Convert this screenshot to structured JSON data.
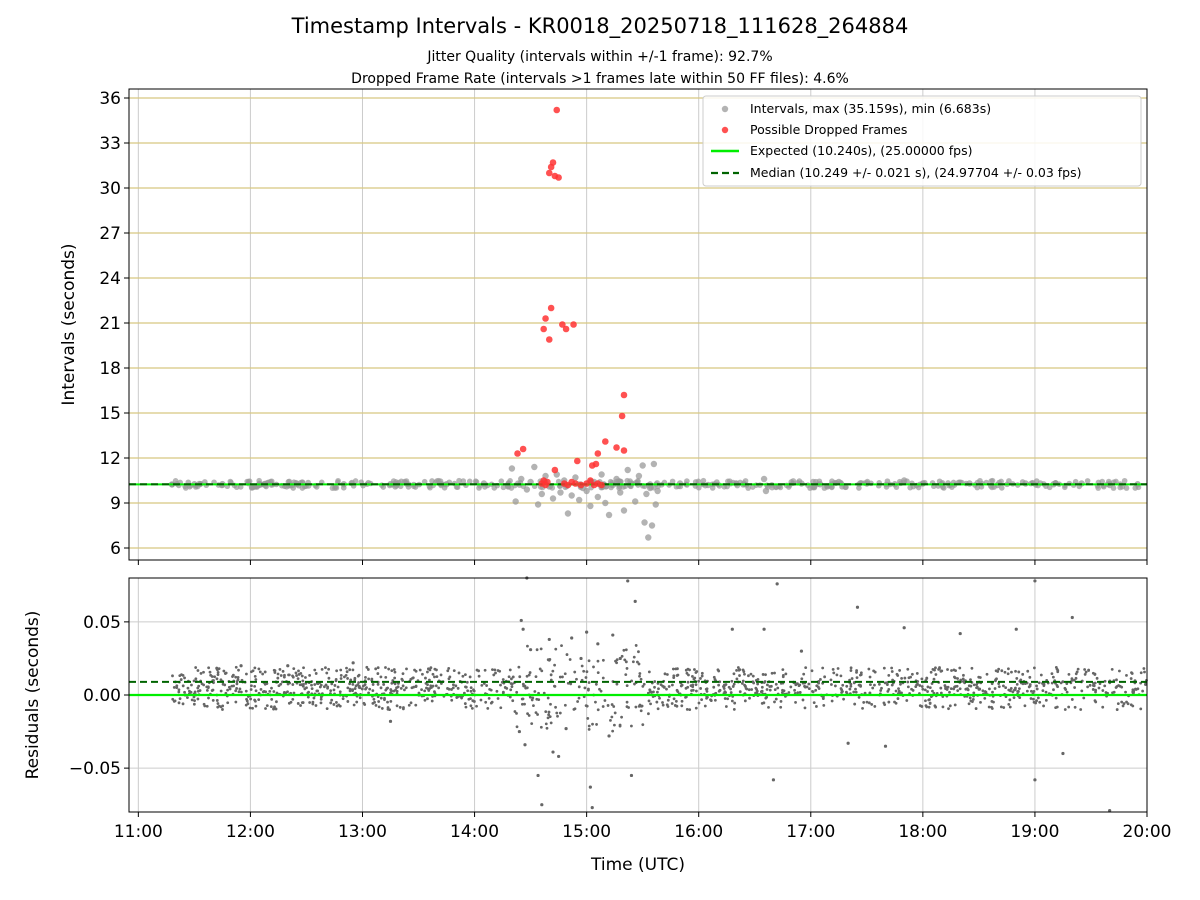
{
  "figure": {
    "title": "Timestamp Intervals - KR0018_20250718_111628_264884",
    "subtitle_1": "Jitter Quality (intervals within +/-1 frame): 92.7%",
    "subtitle_2": "Dropped Frame Rate (intervals >1 frames late within 50 FF files): 4.6%"
  },
  "colors": {
    "intervals": "#999999",
    "dropped": "#ff3333",
    "expected": "#00ee00",
    "median": "#006400",
    "residuals": "#666666",
    "hgrid_top": "#d8c880",
    "grid": "#cccccc"
  },
  "chart_data": [
    {
      "type": "scatter",
      "title": "",
      "xlabel": "",
      "ylabel": "Intervals (seconds)",
      "xlim": [
        "10:55",
        "20:00"
      ],
      "ylim": [
        5.2,
        36.6
      ],
      "yticks": [
        6,
        9,
        12,
        15,
        18,
        21,
        24,
        27,
        30,
        33,
        36
      ],
      "ytick_labels": [
        "6",
        "9",
        "12",
        "15",
        "18",
        "21",
        "24",
        "27",
        "30",
        "33",
        "36"
      ],
      "xticks": [
        "11:00",
        "12:00",
        "13:00",
        "14:00",
        "15:00",
        "16:00",
        "17:00",
        "18:00",
        "19:00",
        "20:00"
      ],
      "grid": "on",
      "legend_position": "top-right",
      "legend": [
        "Intervals, max (35.159s), min (6.683s)",
        "Possible Dropped Frames",
        "Expected (10.240s), (25.00000 fps)",
        "Median (10.249 +/- 0.021 s), (24.97704 +/- 0.03 fps)"
      ],
      "series": [
        {
          "name": "Intervals, max (35.159s), min (6.683s)",
          "kind": "scatter",
          "points": [
            [
              "11:18",
              10.24
            ],
            [
              "11:30",
              10.25
            ],
            [
              "11:45",
              10.26
            ],
            [
              "12:05",
              10.25
            ],
            [
              "12:25",
              10.26
            ],
            [
              "12:50",
              10.25
            ],
            [
              "13:15",
              10.26
            ],
            [
              "13:45",
              10.25
            ],
            [
              "14:05",
              10.3
            ],
            [
              "14:18",
              10.1
            ],
            [
              "14:20",
              11.3
            ],
            [
              "14:22",
              9.1
            ],
            [
              "14:25",
              10.6
            ],
            [
              "14:28",
              9.9
            ],
            [
              "14:30",
              10.4
            ],
            [
              "14:32",
              11.4
            ],
            [
              "14:34",
              8.9
            ],
            [
              "14:36",
              9.6
            ],
            [
              "14:38",
              10.8
            ],
            [
              "14:40",
              10.1
            ],
            [
              "14:42",
              9.3
            ],
            [
              "14:44",
              10.9
            ],
            [
              "14:46",
              9.7
            ],
            [
              "14:48",
              10.5
            ],
            [
              "14:50",
              8.3
            ],
            [
              "14:52",
              9.5
            ],
            [
              "14:54",
              10.7
            ],
            [
              "14:56",
              9.2
            ],
            [
              "14:58",
              10.0
            ],
            [
              "15:00",
              9.8
            ],
            [
              "15:02",
              8.8
            ],
            [
              "15:04",
              10.4
            ],
            [
              "15:06",
              9.4
            ],
            [
              "15:08",
              10.9
            ],
            [
              "15:10",
              9.0
            ],
            [
              "15:12",
              8.2
            ],
            [
              "15:14",
              10.2
            ],
            [
              "15:16",
              10.6
            ],
            [
              "15:18",
              9.7
            ],
            [
              "15:20",
              8.5
            ],
            [
              "15:22",
              11.2
            ],
            [
              "15:24",
              10.3
            ],
            [
              "15:26",
              9.1
            ],
            [
              "15:28",
              10.8
            ],
            [
              "15:30",
              11.5
            ],
            [
              "15:31",
              7.7
            ],
            [
              "15:32",
              9.6
            ],
            [
              "15:33",
              6.7
            ],
            [
              "15:34",
              10.0
            ],
            [
              "15:35",
              7.5
            ],
            [
              "15:36",
              11.6
            ],
            [
              "15:37",
              8.9
            ],
            [
              "15:38",
              9.8
            ],
            [
              "15:50",
              10.3
            ],
            [
              "16:05",
              10.2
            ],
            [
              "16:20",
              10.3
            ],
            [
              "16:35",
              10.6
            ],
            [
              "16:36",
              9.8
            ],
            [
              "16:55",
              10.3
            ],
            [
              "17:05",
              10.25
            ],
            [
              "17:15",
              10.4
            ],
            [
              "17:30",
              10.3
            ],
            [
              "17:45",
              10.25
            ],
            [
              "17:50",
              10.5
            ],
            [
              "18:00",
              10.3
            ],
            [
              "18:10",
              10.25
            ],
            [
              "18:25",
              10.3
            ],
            [
              "18:40",
              10.2
            ],
            [
              "18:55",
              10.3
            ],
            [
              "19:10",
              10.25
            ],
            [
              "19:25",
              10.3
            ],
            [
              "19:40",
              10.2
            ],
            [
              "19:55",
              10.25
            ]
          ]
        },
        {
          "name": "Possible Dropped Frames",
          "kind": "scatter",
          "points": [
            [
              "14:44",
              35.2
            ],
            [
              "14:41",
              31.4
            ],
            [
              "14:42",
              31.7
            ],
            [
              "14:40",
              31.0
            ],
            [
              "14:43",
              30.8
            ],
            [
              "14:45",
              30.7
            ],
            [
              "14:37",
              20.6
            ],
            [
              "14:38",
              21.3
            ],
            [
              "14:41",
              22.0
            ],
            [
              "14:40",
              19.9
            ],
            [
              "14:47",
              20.9
            ],
            [
              "14:49",
              20.6
            ],
            [
              "14:53",
              20.9
            ],
            [
              "15:20",
              16.2
            ],
            [
              "15:19",
              14.8
            ],
            [
              "15:16",
              12.7
            ],
            [
              "15:20",
              12.5
            ],
            [
              "15:10",
              13.1
            ],
            [
              "15:06",
              12.3
            ],
            [
              "14:23",
              12.3
            ],
            [
              "14:26",
              12.6
            ],
            [
              "14:55",
              11.8
            ],
            [
              "15:03",
              11.5
            ],
            [
              "15:05",
              11.6
            ],
            [
              "14:43",
              11.2
            ],
            [
              "14:36",
              10.3
            ],
            [
              "14:37",
              10.5
            ],
            [
              "14:38",
              10.2
            ],
            [
              "14:39",
              10.4
            ],
            [
              "14:48",
              10.3
            ],
            [
              "14:50",
              10.2
            ],
            [
              "14:52",
              10.4
            ],
            [
              "14:54",
              10.3
            ],
            [
              "14:57",
              10.2
            ],
            [
              "15:00",
              10.3
            ],
            [
              "15:02",
              10.5
            ],
            [
              "15:04",
              10.2
            ],
            [
              "15:06",
              10.3
            ],
            [
              "15:08",
              10.2
            ]
          ]
        },
        {
          "name": "Expected (10.240s), (25.00000 fps)",
          "kind": "hline",
          "y": 10.24
        },
        {
          "name": "Median (10.249 +/- 0.021 s), (24.97704 +/- 0.03 fps)",
          "kind": "hline",
          "y": 10.249
        }
      ]
    },
    {
      "type": "scatter",
      "title": "",
      "xlabel": "Time (UTC)",
      "ylabel": "Residuals (seconds)",
      "xlim": [
        "10:55",
        "20:00"
      ],
      "ylim": [
        -0.08,
        0.08
      ],
      "yticks": [
        -0.05,
        0.0,
        0.05
      ],
      "ytick_labels": [
        "−0.05",
        "0.00",
        "0.05"
      ],
      "xticks": [
        "11:00",
        "12:00",
        "13:00",
        "14:00",
        "15:00",
        "16:00",
        "17:00",
        "18:00",
        "19:00",
        "20:00"
      ],
      "grid": "on",
      "series": [
        {
          "kind": "scatter",
          "points": [
            [
              "14:25",
              0.051
            ],
            [
              "14:26",
              0.045
            ],
            [
              "14:24",
              -0.025
            ],
            [
              "14:27",
              -0.034
            ],
            [
              "14:30",
              0.031
            ],
            [
              "14:34",
              -0.055
            ],
            [
              "14:36",
              -0.075
            ],
            [
              "14:40",
              0.038
            ],
            [
              "14:42",
              -0.039
            ],
            [
              "14:45",
              -0.042
            ],
            [
              "14:49",
              -0.023
            ],
            [
              "14:52",
              0.039
            ],
            [
              "14:57",
              0.025
            ],
            [
              "15:00",
              0.043
            ],
            [
              "15:02",
              -0.063
            ],
            [
              "15:03",
              -0.077
            ],
            [
              "15:06",
              0.035
            ],
            [
              "15:12",
              -0.028
            ],
            [
              "15:14",
              0.041
            ],
            [
              "15:18",
              0.025
            ],
            [
              "15:22",
              0.078
            ],
            [
              "15:24",
              -0.055
            ],
            [
              "15:26",
              0.064
            ],
            [
              "14:28",
              0.08
            ],
            [
              "16:18",
              0.045
            ],
            [
              "16:35",
              0.045
            ],
            [
              "16:40",
              -0.058
            ],
            [
              "16:42",
              0.076
            ],
            [
              "16:55",
              0.03
            ],
            [
              "17:20",
              -0.033
            ],
            [
              "17:25",
              0.06
            ],
            [
              "17:40",
              -0.035
            ],
            [
              "17:50",
              0.046
            ],
            [
              "18:20",
              0.042
            ],
            [
              "18:50",
              0.045
            ],
            [
              "19:00",
              0.078
            ],
            [
              "19:00",
              -0.058
            ],
            [
              "19:15",
              -0.04
            ],
            [
              "19:20",
              0.053
            ],
            [
              "19:40",
              -0.079
            ],
            [
              "13:15",
              -0.018
            ],
            [
              "11:55",
              0.02
            ],
            [
              "12:20",
              0.02
            ],
            [
              "12:55",
              0.022
            ]
          ]
        },
        {
          "name": "Expected",
          "kind": "hline",
          "y": 0.0
        },
        {
          "name": "Median",
          "kind": "hline",
          "y": 0.009
        }
      ]
    }
  ]
}
